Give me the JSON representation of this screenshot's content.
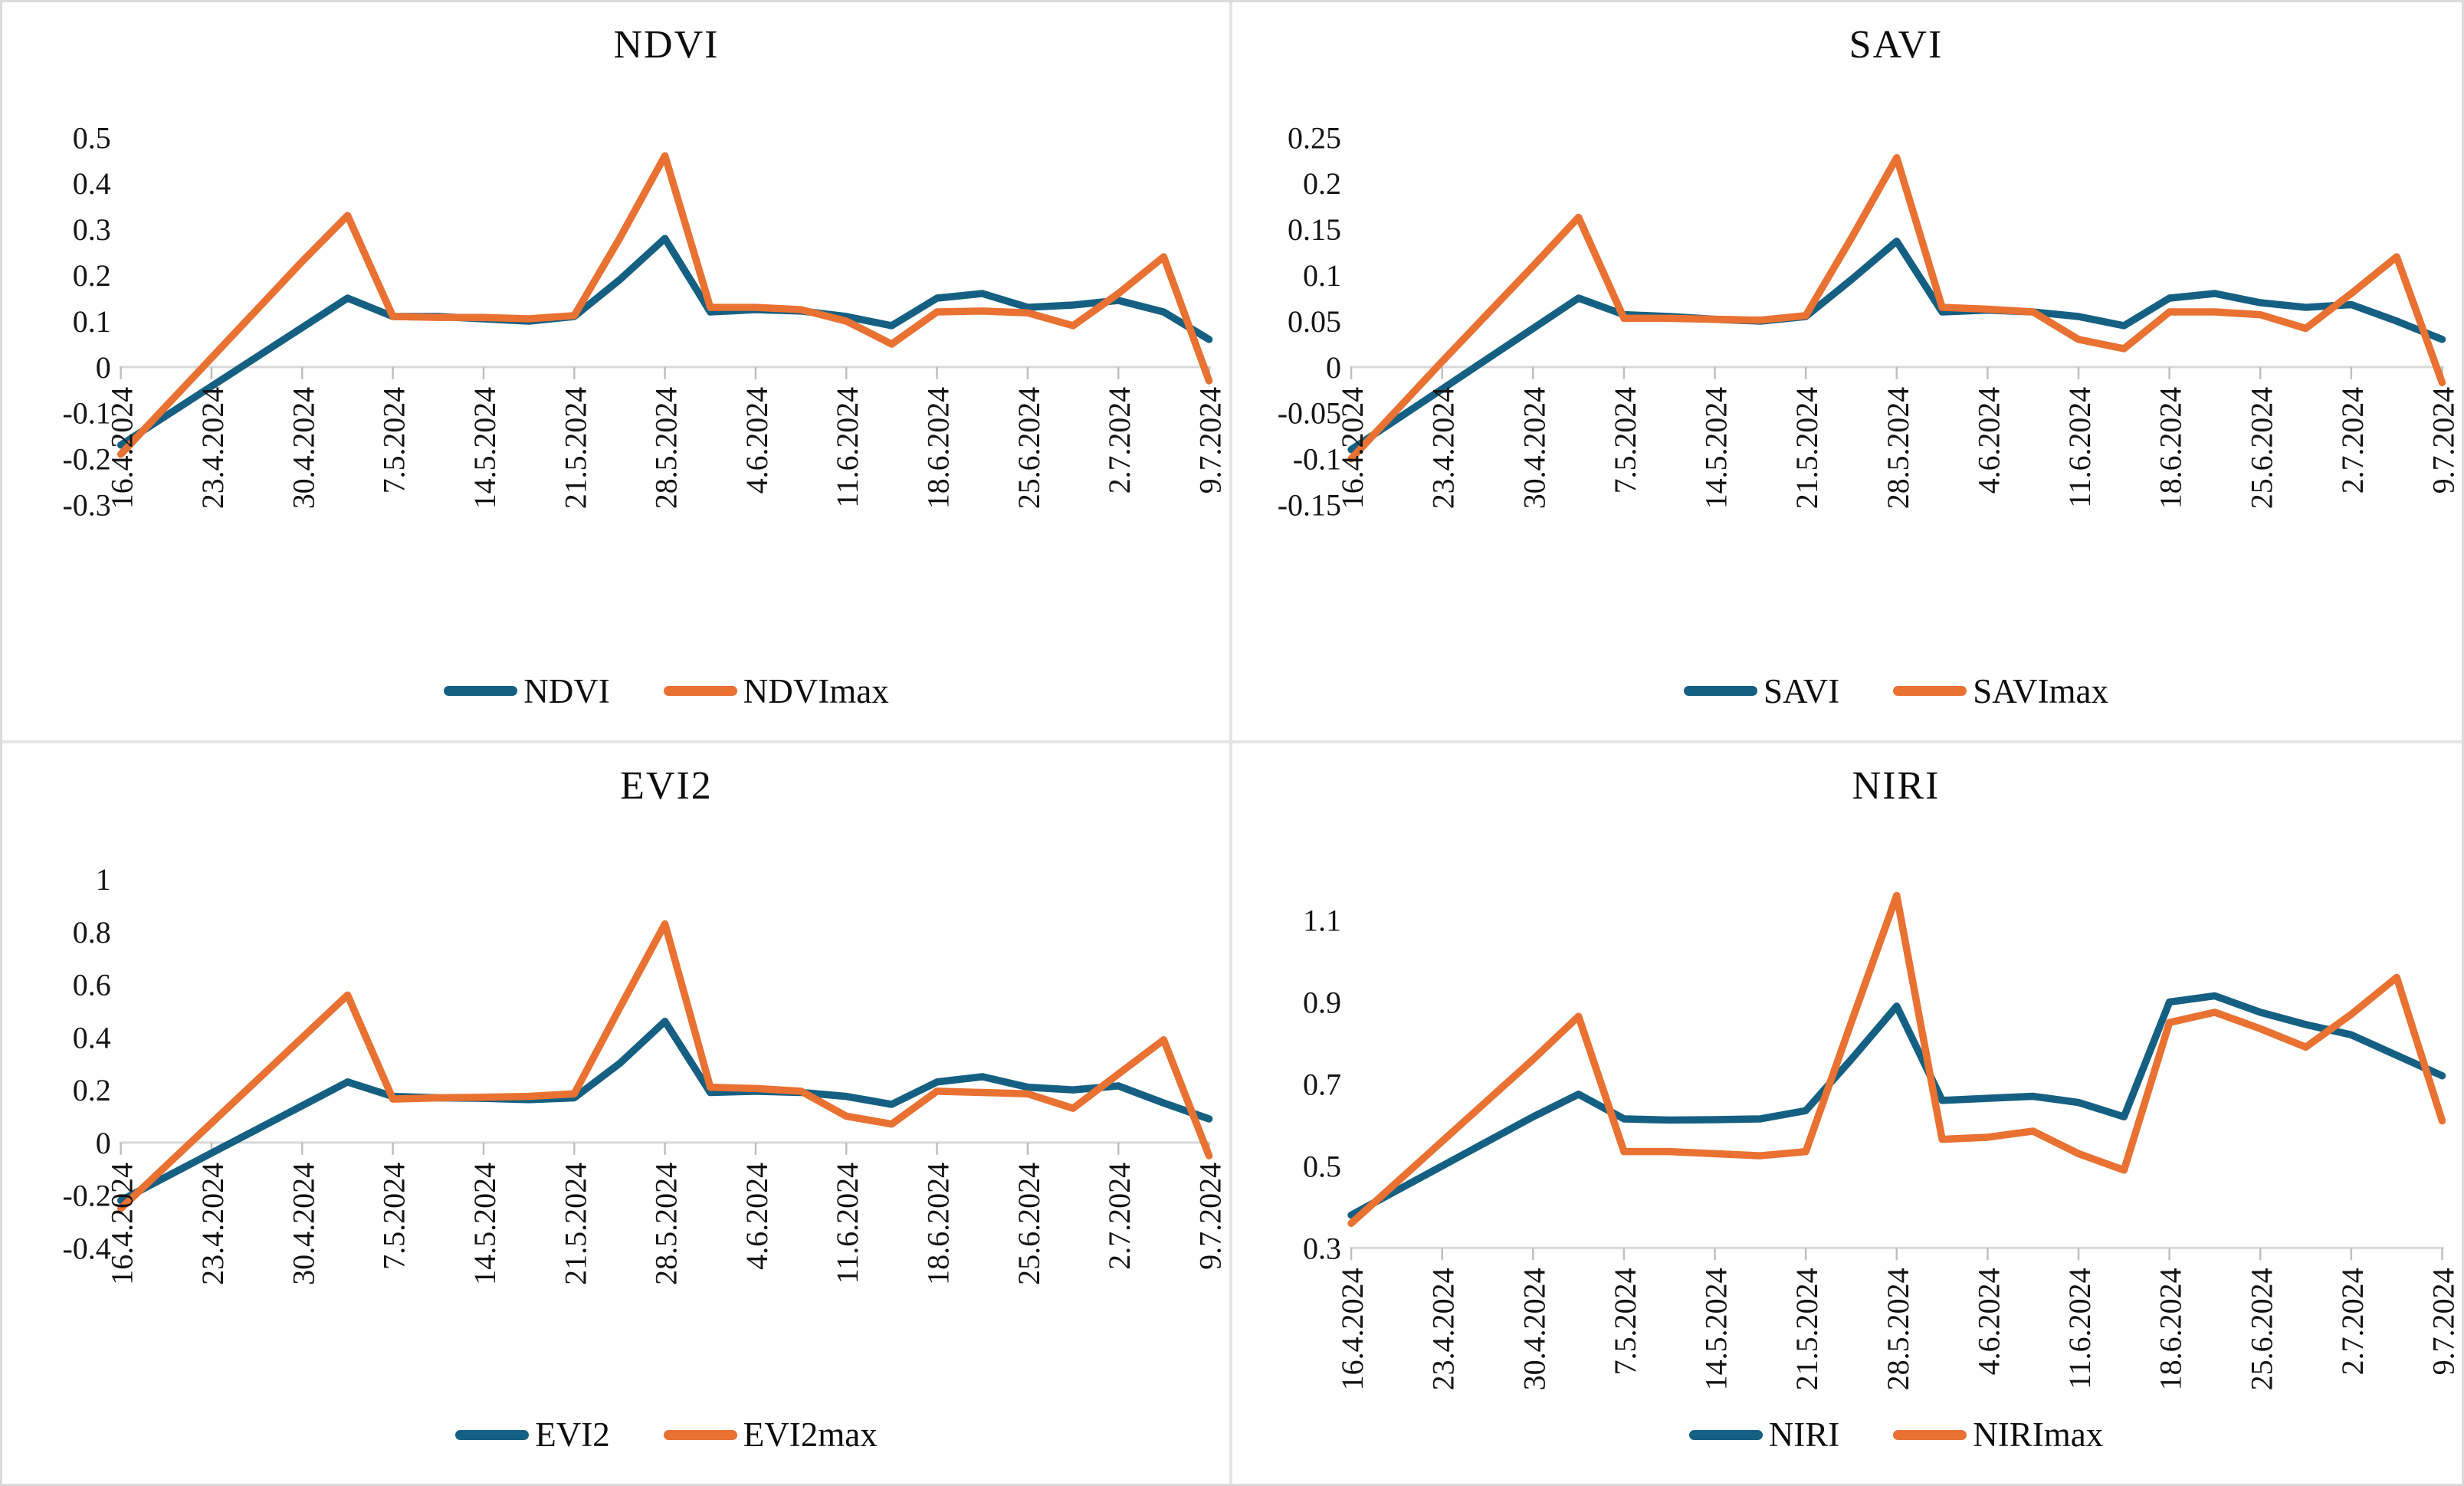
{
  "figure": {
    "background": "#ffffff",
    "frame_color": "#dcdcdc"
  },
  "colors": {
    "series1": "#156082",
    "series2": "#E97132",
    "axis_line": "#D9D9D9",
    "tick_mark": "#BFBFBF",
    "label_text": "#141414"
  },
  "x_axis": {
    "tick_labels": [
      "16.4.2024",
      "23.4.2024",
      "30.4.2024",
      "7.5.2024",
      "14.5.2024",
      "21.5.2024",
      "28.5.2024",
      "4.6.2024",
      "11.6.2024",
      "18.6.2024",
      "25.6.2024",
      "2.7.2024",
      "9.7.2024"
    ],
    "points_per_label_interval": 2,
    "point_count": 25
  },
  "chart_data": [
    {
      "type": "line",
      "id": "ndvi",
      "title": "NDVI",
      "ylim": [
        -0.3,
        0.5
      ],
      "axis_cross": 0,
      "grid": false,
      "legend_position": "bottom",
      "y_ticks": [
        {
          "v": 0.5,
          "label": "0.5"
        },
        {
          "v": 0.4,
          "label": "0.4"
        },
        {
          "v": 0.3,
          "label": "0.3"
        },
        {
          "v": 0.2,
          "label": "0.2"
        },
        {
          "v": 0.1,
          "label": "0.1"
        },
        {
          "v": 0,
          "label": "0"
        },
        {
          "v": -0.1,
          "label": "-0.1"
        },
        {
          "v": -0.2,
          "label": "-0.2"
        },
        {
          "v": -0.3,
          "label": "-0.3"
        }
      ],
      "series": [
        {
          "name": "NDVI",
          "color_key": "series1",
          "values": [
            -0.17,
            -0.106,
            -0.042,
            0.022,
            0.086,
            0.15,
            0.11,
            0.11,
            0.105,
            0.1,
            0.11,
            0.19,
            0.28,
            0.12,
            0.125,
            0.122,
            0.11,
            0.09,
            0.15,
            0.16,
            0.13,
            0.135,
            0.145,
            0.12,
            0.06
          ]
        },
        {
          "name": "NDVImax",
          "color_key": "series2",
          "values": [
            -0.19,
            -0.085,
            0.02,
            0.125,
            0.23,
            0.33,
            0.11,
            0.108,
            0.108,
            0.105,
            0.112,
            0.28,
            0.46,
            0.13,
            0.13,
            0.125,
            0.1,
            0.05,
            0.12,
            0.122,
            0.118,
            0.09,
            0.16,
            0.24,
            -0.03
          ]
        }
      ]
    },
    {
      "type": "line",
      "id": "savi",
      "title": "SAVI",
      "ylim": [
        -0.15,
        0.25
      ],
      "axis_cross": 0,
      "grid": false,
      "legend_position": "bottom",
      "y_ticks": [
        {
          "v": 0.25,
          "label": "0.25"
        },
        {
          "v": 0.2,
          "label": "0.2"
        },
        {
          "v": 0.15,
          "label": "0.15"
        },
        {
          "v": 0.1,
          "label": "0.1"
        },
        {
          "v": 0.05,
          "label": "0.05"
        },
        {
          "v": 0,
          "label": "0"
        },
        {
          "v": -0.05,
          "label": "-0.05"
        },
        {
          "v": -0.1,
          "label": "-0.1"
        },
        {
          "v": -0.15,
          "label": "-0.15"
        }
      ],
      "series": [
        {
          "name": "SAVI",
          "color_key": "series1",
          "values": [
            -0.09,
            -0.057,
            -0.024,
            0.009,
            0.042,
            0.075,
            0.057,
            0.055,
            0.052,
            0.05,
            0.055,
            0.095,
            0.137,
            0.06,
            0.062,
            0.06,
            0.055,
            0.045,
            0.075,
            0.08,
            0.07,
            0.065,
            0.068,
            0.05,
            0.03
          ]
        },
        {
          "name": "SAVImax",
          "color_key": "series2",
          "values": [
            -0.1,
            -0.047,
            0.006,
            0.058,
            0.11,
            0.163,
            0.053,
            0.053,
            0.052,
            0.051,
            0.056,
            0.14,
            0.228,
            0.065,
            0.063,
            0.06,
            0.03,
            0.02,
            0.06,
            0.06,
            0.057,
            0.042,
            0.08,
            0.12,
            -0.017
          ]
        }
      ]
    },
    {
      "type": "line",
      "id": "evi2",
      "title": "EVI2",
      "ylim": [
        -0.4,
        1.0
      ],
      "axis_cross": 0,
      "grid": false,
      "legend_position": "bottom",
      "y_ticks": [
        {
          "v": 1,
          "label": "1"
        },
        {
          "v": 0.8,
          "label": "0.8"
        },
        {
          "v": 0.6,
          "label": "0.6"
        },
        {
          "v": 0.4,
          "label": "0.4"
        },
        {
          "v": 0.2,
          "label": "0.2"
        },
        {
          "v": 0,
          "label": "0"
        },
        {
          "v": -0.2,
          "label": "-0.2"
        },
        {
          "v": -0.4,
          "label": "-0.4"
        }
      ],
      "series": [
        {
          "name": "EVI2",
          "color_key": "series1",
          "values": [
            -0.22,
            -0.13,
            -0.04,
            0.05,
            0.14,
            0.23,
            0.175,
            0.17,
            0.168,
            0.163,
            0.17,
            0.3,
            0.46,
            0.19,
            0.195,
            0.19,
            0.175,
            0.145,
            0.23,
            0.25,
            0.21,
            0.2,
            0.215,
            0.15,
            0.09
          ]
        },
        {
          "name": "EVI2max",
          "color_key": "series2",
          "values": [
            -0.25,
            -0.088,
            0.074,
            0.236,
            0.398,
            0.56,
            0.165,
            0.17,
            0.172,
            0.175,
            0.185,
            0.51,
            0.83,
            0.21,
            0.205,
            0.195,
            0.1,
            0.07,
            0.195,
            0.19,
            0.185,
            0.13,
            0.26,
            0.39,
            -0.05
          ]
        }
      ]
    },
    {
      "type": "line",
      "id": "niri",
      "title": "NIRI",
      "ylim": [
        0.3,
        1.2
      ],
      "axis_cross": 0.3,
      "grid": false,
      "legend_position": "bottom",
      "y_ticks": [
        {
          "v": 1.1,
          "label": "1.1"
        },
        {
          "v": 0.9,
          "label": "0.9"
        },
        {
          "v": 0.7,
          "label": "0.7"
        },
        {
          "v": 0.5,
          "label": "0.5"
        },
        {
          "v": 0.3,
          "label": "0.3"
        }
      ],
      "series": [
        {
          "name": "NIRI",
          "color_key": "series1",
          "values": [
            0.38,
            0.44,
            0.5,
            0.56,
            0.62,
            0.675,
            0.615,
            0.612,
            0.613,
            0.615,
            0.635,
            0.76,
            0.89,
            0.66,
            0.665,
            0.67,
            0.655,
            0.62,
            0.9,
            0.915,
            0.875,
            0.845,
            0.82,
            0.77,
            0.72
          ]
        },
        {
          "name": "NIRImax",
          "color_key": "series2",
          "values": [
            0.36,
            0.46,
            0.56,
            0.66,
            0.76,
            0.865,
            0.535,
            0.535,
            0.53,
            0.525,
            0.535,
            0.85,
            1.16,
            0.565,
            0.57,
            0.585,
            0.53,
            0.49,
            0.85,
            0.875,
            0.835,
            0.79,
            0.87,
            0.96,
            0.61
          ]
        }
      ]
    }
  ]
}
